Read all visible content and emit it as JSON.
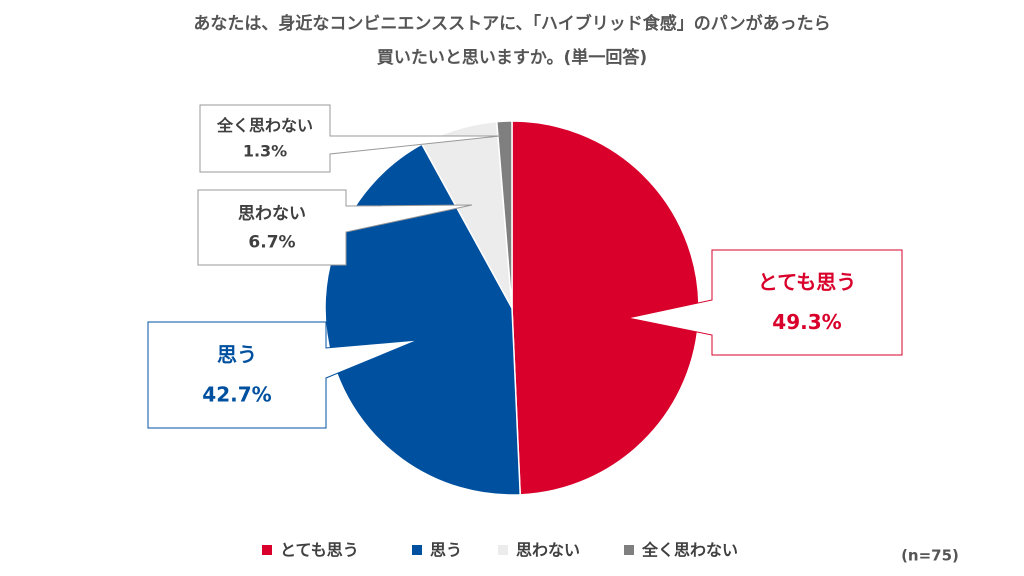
{
  "chart_data": {
    "type": "pie",
    "title": [
      "あなたは、身近なコンビニエンスストアに、「ハイブリッド食感」のパンがあったら",
      "買いたいと思いますか。(単一回答)"
    ],
    "categories": [
      "とても思う",
      "思う",
      "思わない",
      "全く思わない"
    ],
    "values": [
      49.3,
      42.7,
      6.7,
      1.3
    ],
    "value_labels": [
      "49.3%",
      "42.7%",
      "6.7%",
      "1.3%"
    ],
    "colors": [
      "#d9002b",
      "#0050a0",
      "#ececec",
      "#7f7f7f"
    ],
    "legend": "bottom",
    "note": "(n=75)"
  }
}
